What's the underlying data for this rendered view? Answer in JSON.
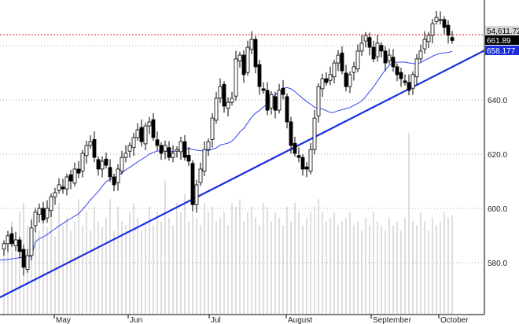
{
  "chart_data": {
    "type": "candlestick",
    "title": "",
    "y_axis": {
      "ticks": [
        "640.0",
        "620.0",
        "600.0",
        "580.0"
      ],
      "tick_values": [
        640,
        620,
        600,
        580
      ],
      "range": [
        565,
        677
      ],
      "position": "right",
      "grid": "dotted"
    },
    "x_axis": {
      "ticks": [
        "May",
        "Jun",
        "Jul",
        "August",
        "September",
        "October"
      ]
    },
    "closes": [
      587.0,
      589.9,
      587.0,
      588.4,
      584.1,
      578.3,
      582.6,
      592.8,
      598.6,
      600.0,
      595.7,
      600.0,
      604.3,
      605.8,
      608.7,
      607.2,
      611.6,
      610.1,
      614.5,
      613.0,
      620.3,
      623.2,
      624.6,
      618.8,
      614.5,
      617.4,
      615.9,
      611.6,
      608.7,
      614.5,
      618.8,
      620.3,
      623.2,
      626.1,
      629.0,
      624.6,
      630.4,
      631.9,
      626.1,
      623.2,
      620.3,
      623.2,
      618.8,
      620.3,
      621.7,
      624.6,
      618.8,
      617.4,
      601.4,
      608.7,
      614.5,
      621.7,
      624.6,
      633.3,
      640.6,
      644.9,
      637.7,
      639.1,
      640.6,
      655.1,
      656.5,
      649.3,
      659.4,
      662.3,
      652.2,
      644.9,
      643.5,
      636.2,
      642.0,
      636.2,
      643.5,
      642.0,
      631.9,
      623.2,
      620.3,
      618.8,
      614.5,
      614.5,
      621.7,
      633.3,
      644.9,
      647.8,
      646.4,
      649.3,
      653.6,
      656.5,
      650.7,
      644.9,
      649.3,
      652.2,
      658.0,
      660.9,
      663.8,
      659.4,
      655.1,
      660.9,
      658.0,
      653.6,
      656.5,
      652.2,
      649.3,
      647.8,
      646.4,
      643.5,
      649.3,
      655.1,
      658.0,
      662.3,
      663.8,
      668.1,
      670.4,
      669.6,
      666.7,
      663.8,
      661.89
    ],
    "volume_relative": [
      40,
      45,
      50,
      42,
      55,
      60,
      48,
      52,
      58,
      45,
      50,
      47,
      55,
      42,
      60,
      48,
      52,
      45,
      50,
      62,
      48,
      55,
      45,
      58,
      50,
      47,
      52,
      62,
      45,
      58,
      50,
      48,
      55,
      60,
      52,
      45,
      50,
      58,
      48,
      55,
      50,
      72,
      52,
      48,
      60,
      55,
      65,
      50,
      58,
      52,
      48,
      60,
      55,
      58,
      50,
      52,
      55,
      48,
      60,
      58,
      62,
      50,
      55,
      58,
      52,
      48,
      60,
      58,
      50,
      55,
      52,
      48,
      58,
      50,
      60,
      55,
      48,
      52,
      55,
      58,
      62,
      55,
      50,
      52,
      55,
      48,
      50,
      52,
      55,
      48,
      50,
      45,
      52,
      48,
      55,
      50,
      48,
      45,
      52,
      48,
      50,
      45,
      52,
      98,
      50,
      48,
      55,
      50,
      45,
      52,
      48,
      50,
      55,
      52,
      53
    ],
    "moving_average_period": 20,
    "trendline": {
      "start": 567.2,
      "end": 658.177
    },
    "reference_line": {
      "value": 664.0,
      "color": "#e03030"
    },
    "labels": {
      "index_value": "54,611.72",
      "last_close": "661.89",
      "trendline_value": "658.177"
    },
    "colors": {
      "up": "#ffffff",
      "down": "#000000",
      "ma": "#3344ee",
      "trendline": "#1a2ee0",
      "volume": "#c8c8c8",
      "grid": "#888888"
    }
  }
}
